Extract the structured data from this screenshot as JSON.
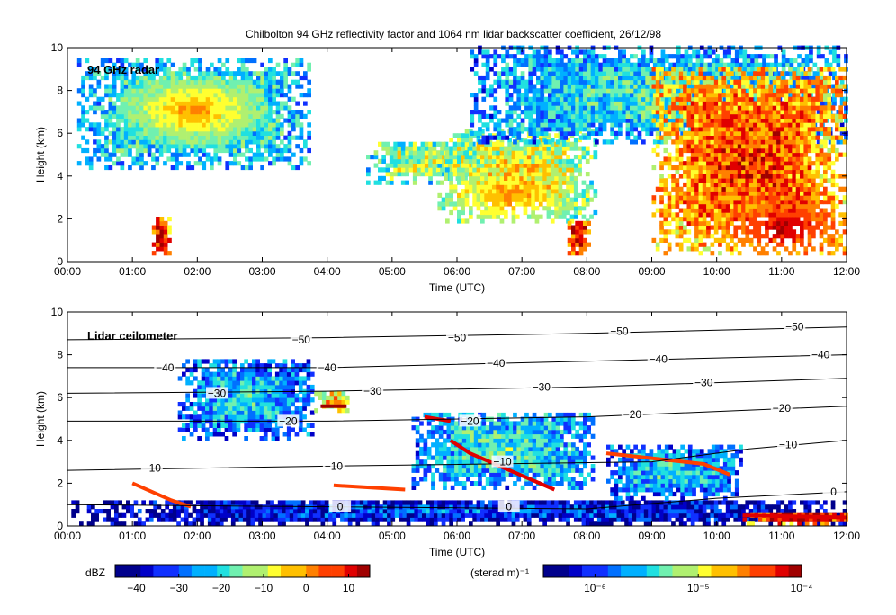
{
  "title": "Chilbolton 94 GHz reflectivity factor and 1064 nm lidar backscatter coefficient, 26/12/98",
  "chart_data": [
    {
      "type": "heatmap",
      "panel_label": "94 GHz radar",
      "xlabel": "Time (UTC)",
      "ylabel": "Height (km)",
      "xticks": [
        "00:00",
        "01:00",
        "02:00",
        "03:00",
        "04:00",
        "05:00",
        "06:00",
        "07:00",
        "08:00",
        "09:00",
        "10:00",
        "11:00",
        "12:00"
      ],
      "yticks": [
        "0",
        "2",
        "4",
        "6",
        "8",
        "10"
      ],
      "xlim_hours": [
        0,
        12
      ],
      "ylim_km": [
        0,
        10
      ],
      "colorbar": {
        "label": "dBZ",
        "ticks": [
          "−40",
          "−30",
          "−20",
          "−10",
          "0",
          "10"
        ],
        "range": [
          -45,
          15
        ]
      },
      "regions": [
        {
          "t0": 0.15,
          "t1": 3.7,
          "h0": 4.3,
          "h1": 9.4,
          "level": 0.35,
          "cores": [
            {
              "t": 1.9,
              "h": 7.0,
              "level": 0.75
            }
          ]
        },
        {
          "t0": 4.6,
          "t1": 6.7,
          "h0": 3.6,
          "h1": 5.6,
          "level": 0.45
        },
        {
          "t0": 5.7,
          "t1": 8.1,
          "h0": 1.8,
          "h1": 6.2,
          "level": 0.5,
          "cores": [
            {
              "t": 6.8,
              "h": 3.0,
              "level": 0.75
            }
          ]
        },
        {
          "t0": 6.2,
          "t1": 12.0,
          "h0": 5.5,
          "h1": 9.9,
          "level": 0.3
        },
        {
          "t0": 9.0,
          "t1": 12.0,
          "h0": 0.3,
          "h1": 9.0,
          "level": 0.7,
          "cores": [
            {
              "t": 11.0,
              "h": 1.5,
              "level": 0.95
            }
          ]
        },
        {
          "t0": 1.3,
          "t1": 1.55,
          "h0": 0.3,
          "h1": 2.0,
          "level": 0.8
        },
        {
          "t0": 7.7,
          "t1": 8.0,
          "h0": 0.3,
          "h1": 1.8,
          "level": 0.8
        }
      ]
    },
    {
      "type": "heatmap",
      "panel_label": "Lidar ceilometer",
      "xlabel": "Time (UTC)",
      "ylabel": "Height (km)",
      "xticks": [
        "00:00",
        "01:00",
        "02:00",
        "03:00",
        "04:00",
        "05:00",
        "06:00",
        "07:00",
        "08:00",
        "09:00",
        "10:00",
        "11:00",
        "12:00"
      ],
      "yticks": [
        "0",
        "2",
        "4",
        "6",
        "8",
        "10"
      ],
      "xlim_hours": [
        0,
        12
      ],
      "ylim_km": [
        0,
        10
      ],
      "colorbar": {
        "label": "(sterad m)⁻¹",
        "ticks": [
          "10⁻⁶",
          "10⁻⁵",
          "10⁻⁴"
        ],
        "range_log10": [
          -6.6,
          -3.9
        ]
      },
      "isotherms": [
        {
          "label": "−50",
          "points": [
            [
              0,
              8.7
            ],
            [
              4,
              8.8
            ],
            [
              8,
              9.0
            ],
            [
              12,
              9.3
            ]
          ],
          "label_at": [
            [
              3.6,
              8.7
            ],
            [
              6.0,
              8.8
            ],
            [
              8.5,
              9.1
            ],
            [
              11.2,
              9.3
            ]
          ]
        },
        {
          "label": "−40",
          "points": [
            [
              0,
              7.4
            ],
            [
              4,
              7.4
            ],
            [
              8,
              7.7
            ],
            [
              12,
              8.0
            ]
          ],
          "label_at": [
            [
              1.5,
              7.4
            ],
            [
              4.0,
              7.4
            ],
            [
              6.6,
              7.6
            ],
            [
              9.1,
              7.8
            ],
            [
              11.6,
              8.0
            ]
          ]
        },
        {
          "label": "−30",
          "points": [
            [
              0,
              6.2
            ],
            [
              4,
              6.3
            ],
            [
              8,
              6.5
            ],
            [
              12,
              6.9
            ]
          ],
          "label_at": [
            [
              2.3,
              6.2
            ],
            [
              4.7,
              6.3
            ],
            [
              7.3,
              6.5
            ],
            [
              9.8,
              6.7
            ]
          ]
        },
        {
          "label": "−20",
          "points": [
            [
              0,
              4.9
            ],
            [
              4,
              4.9
            ],
            [
              8,
              5.1
            ],
            [
              12,
              5.6
            ]
          ],
          "label_at": [
            [
              3.4,
              4.9
            ],
            [
              6.2,
              4.9
            ],
            [
              8.7,
              5.2
            ],
            [
              11.0,
              5.5
            ]
          ]
        },
        {
          "label": "−10",
          "points": [
            [
              0,
              2.6
            ],
            [
              4,
              2.8
            ],
            [
              9.0,
              3.0
            ],
            [
              10.5,
              3.6
            ],
            [
              12,
              4.0
            ]
          ],
          "label_at": [
            [
              1.3,
              2.7
            ],
            [
              4.1,
              2.8
            ],
            [
              6.7,
              3.0
            ],
            [
              11.1,
              3.8
            ]
          ]
        },
        {
          "label": "0",
          "points": [
            [
              0,
              1.0
            ],
            [
              8,
              0.8
            ],
            [
              10,
              1.3
            ],
            [
              12,
              1.6
            ]
          ],
          "label_at": [
            [
              4.2,
              0.9
            ],
            [
              6.8,
              0.9
            ],
            [
              11.8,
              1.6
            ]
          ]
        }
      ],
      "regions": [
        {
          "t0": 0.0,
          "t1": 12.0,
          "h0": 0.0,
          "h1": 1.2,
          "level": 0.08
        },
        {
          "t0": 1.7,
          "t1": 3.8,
          "h0": 4.0,
          "h1": 7.7,
          "level": 0.25
        },
        {
          "t0": 3.8,
          "t1": 4.3,
          "h0": 5.3,
          "h1": 6.3,
          "level": 0.55
        },
        {
          "t0": 5.3,
          "t1": 8.1,
          "h0": 1.7,
          "h1": 5.3,
          "level": 0.3
        },
        {
          "t0": 8.3,
          "t1": 10.4,
          "h0": 1.2,
          "h1": 3.7,
          "level": 0.25
        },
        {
          "t0": 10.4,
          "t1": 12.0,
          "h0": 0.0,
          "h1": 0.6,
          "level": 0.8
        }
      ],
      "streaks": [
        {
          "points": [
            [
              3.9,
              5.6
            ],
            [
              4.3,
              5.6
            ]
          ],
          "level": 0.95
        },
        {
          "points": [
            [
              5.5,
              5.1
            ],
            [
              5.9,
              4.9
            ]
          ],
          "level": 0.9
        },
        {
          "points": [
            [
              5.9,
              4.0
            ],
            [
              6.2,
              3.4
            ],
            [
              7.5,
              1.7
            ]
          ],
          "level": 0.9
        },
        {
          "points": [
            [
              4.1,
              1.9
            ],
            [
              5.2,
              1.7
            ]
          ],
          "level": 0.85
        },
        {
          "points": [
            [
              8.3,
              3.4
            ],
            [
              9.8,
              2.9
            ],
            [
              10.2,
              2.4
            ]
          ],
          "level": 0.85
        },
        {
          "points": [
            [
              1.0,
              2.0
            ],
            [
              1.6,
              1.2
            ],
            [
              1.9,
              0.9
            ]
          ],
          "level": 0.85
        },
        {
          "points": [
            [
              10.4,
              0.5
            ],
            [
              12.0,
              0.4
            ]
          ],
          "level": 0.9
        }
      ]
    }
  ],
  "colors": {
    "palette": [
      "#00008c",
      "#0000c8",
      "#1030ff",
      "#0070ff",
      "#00b0ff",
      "#20e0e0",
      "#70f0b0",
      "#b0f070",
      "#ffff30",
      "#ffc000",
      "#ff8000",
      "#ff4000",
      "#e00000",
      "#a00000"
    ]
  }
}
